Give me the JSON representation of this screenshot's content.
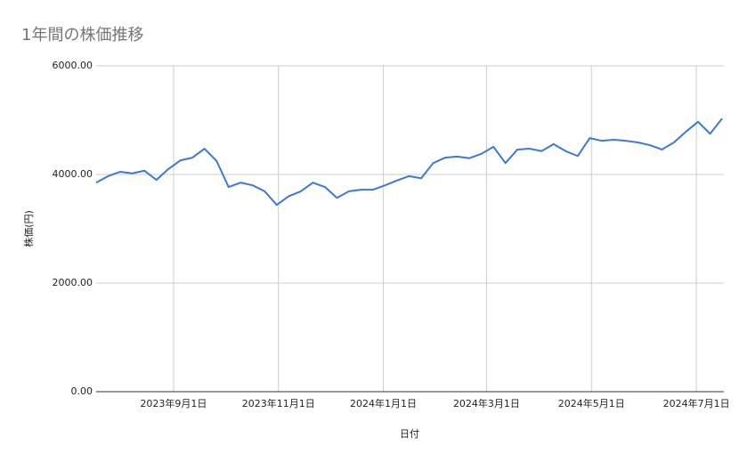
{
  "chart_data": {
    "type": "line",
    "title": "1年間の株価推移",
    "x_label": "日付",
    "y_label": "株価(円)",
    "x": [
      "2023-07-18",
      "2023-07-25",
      "2023-08-01",
      "2023-08-08",
      "2023-08-15",
      "2023-08-22",
      "2023-08-29",
      "2023-09-05",
      "2023-09-12",
      "2023-09-19",
      "2023-09-26",
      "2023-10-03",
      "2023-10-10",
      "2023-10-17",
      "2023-10-24",
      "2023-10-31",
      "2023-11-07",
      "2023-11-14",
      "2023-11-21",
      "2023-11-28",
      "2023-12-05",
      "2023-12-12",
      "2023-12-19",
      "2023-12-26",
      "2024-01-02",
      "2024-01-09",
      "2024-01-16",
      "2024-01-23",
      "2024-01-30",
      "2024-02-06",
      "2024-02-13",
      "2024-02-20",
      "2024-02-27",
      "2024-03-05",
      "2024-03-12",
      "2024-03-19",
      "2024-03-26",
      "2024-04-02",
      "2024-04-09",
      "2024-04-16",
      "2024-04-23",
      "2024-04-30",
      "2024-05-07",
      "2024-05-14",
      "2024-05-21",
      "2024-05-28",
      "2024-06-04",
      "2024-06-11",
      "2024-06-18",
      "2024-06-25",
      "2024-07-02",
      "2024-07-09",
      "2024-07-16"
    ],
    "series": [
      {
        "name": "株価",
        "color": "#3c78d8",
        "values": [
          3850,
          3970,
          4050,
          4020,
          4070,
          3900,
          4100,
          4260,
          4310,
          4475,
          4250,
          3770,
          3850,
          3800,
          3690,
          3440,
          3600,
          3690,
          3850,
          3770,
          3570,
          3690,
          3720,
          3720,
          3800,
          3890,
          3970,
          3930,
          4210,
          4310,
          4330,
          4300,
          4380,
          4510,
          4210,
          4460,
          4475,
          4430,
          4560,
          4430,
          4340,
          4670,
          4620,
          4640,
          4620,
          4590,
          4540,
          4460,
          4590,
          4790,
          4970,
          4750,
          5030
        ]
      }
    ],
    "xlim": [
      "2023-07-18",
      "2024-07-17"
    ],
    "xticks": [
      {
        "value": "2023-09-01",
        "label": "2023年9月1日"
      },
      {
        "value": "2023-11-01",
        "label": "2023年11月1日"
      },
      {
        "value": "2024-01-01",
        "label": "2024年1月1日"
      },
      {
        "value": "2024-03-01",
        "label": "2024年3月1日"
      },
      {
        "value": "2024-05-01",
        "label": "2024年5月1日"
      },
      {
        "value": "2024-07-01",
        "label": "2024年7月1日"
      }
    ],
    "ylim": [
      0,
      6000
    ],
    "yticks": [
      {
        "value": 0,
        "label": "0.00"
      },
      {
        "value": 2000,
        "label": "2000.00"
      },
      {
        "value": 4000,
        "label": "4000.00"
      },
      {
        "value": 6000,
        "label": "6000.00"
      }
    ],
    "grid": true
  }
}
